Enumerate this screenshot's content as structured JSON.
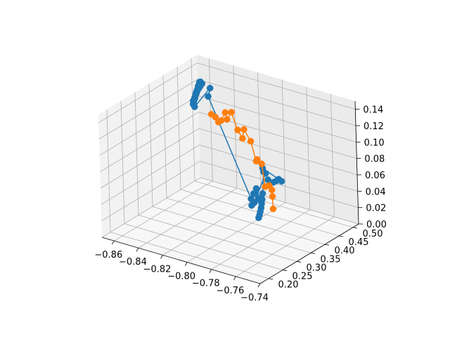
{
  "chart_data": {
    "type": "scatter",
    "projection": "3d",
    "title": "",
    "xlabel": "",
    "ylabel": "",
    "zlabel": "",
    "grid": true,
    "xlim": [
      -0.87,
      -0.74
    ],
    "ylim": [
      0.17,
      0.52
    ],
    "zlim": [
      0.0,
      0.15
    ],
    "x_ticks": [
      "−0.86",
      "−0.84",
      "−0.82",
      "−0.80",
      "−0.78",
      "−0.76",
      "−0.74"
    ],
    "y_ticks": [
      "0.20",
      "0.25",
      "0.30",
      "0.35",
      "0.40",
      "0.45",
      "0.50"
    ],
    "z_ticks": [
      "0.00",
      "0.02",
      "0.04",
      "0.06",
      "0.08",
      "0.10",
      "0.12",
      "0.14"
    ],
    "colors": {
      "series_1": "#1f77b4",
      "series_2": "#ff7f0e"
    },
    "series": [
      {
        "color": "#1f77b4",
        "style": "line-markers",
        "points": [
          [
            -0.862,
            0.47,
            0.105
          ],
          [
            -0.862,
            0.472,
            0.108
          ],
          [
            -0.861,
            0.471,
            0.111
          ],
          [
            -0.861,
            0.473,
            0.114
          ],
          [
            -0.86,
            0.472,
            0.117
          ],
          [
            -0.86,
            0.474,
            0.12
          ],
          [
            -0.859,
            0.473,
            0.123
          ],
          [
            -0.859,
            0.475,
            0.126
          ],
          [
            -0.858,
            0.474,
            0.129
          ],
          [
            -0.858,
            0.476,
            0.131
          ],
          [
            -0.857,
            0.475,
            0.132
          ],
          [
            -0.856,
            0.476,
            0.13
          ],
          [
            -0.857,
            0.474,
            0.127
          ],
          [
            -0.858,
            0.473,
            0.124
          ],
          [
            -0.859,
            0.472,
            0.121
          ],
          [
            -0.86,
            0.471,
            0.118
          ],
          [
            -0.861,
            0.47,
            0.112
          ],
          [
            -0.862,
            0.469,
            0.108
          ],
          [
            -0.862,
            0.468,
            0.104
          ],
          [
            -0.861,
            0.469,
            0.101
          ],
          [
            -0.849,
            0.474,
            0.128
          ],
          [
            -0.85,
            0.471,
            0.118
          ],
          [
            -0.773,
            0.286,
            0.065
          ],
          [
            -0.771,
            0.287,
            0.072
          ],
          [
            -0.769,
            0.288,
            0.079
          ],
          [
            -0.77,
            0.289,
            0.072
          ],
          [
            -0.768,
            0.29,
            0.067
          ],
          [
            -0.766,
            0.291,
            0.065
          ],
          [
            -0.772,
            0.283,
            0.058
          ],
          [
            -0.77,
            0.284,
            0.062
          ],
          [
            -0.757,
            0.272,
            0.106
          ],
          [
            -0.756,
            0.275,
            0.098
          ],
          [
            -0.755,
            0.278,
            0.094
          ],
          [
            -0.753,
            0.28,
            0.095
          ],
          [
            -0.751,
            0.282,
            0.097
          ],
          [
            -0.749,
            0.283,
            0.1
          ],
          [
            -0.747,
            0.285,
            0.098
          ],
          [
            -0.759,
            0.27,
            0.112
          ],
          [
            -0.758,
            0.269,
            0.108
          ],
          [
            -0.76,
            0.272,
            0.08
          ],
          [
            -0.761,
            0.274,
            0.072
          ],
          [
            -0.762,
            0.276,
            0.066
          ],
          [
            -0.763,
            0.278,
            0.06
          ],
          [
            -0.764,
            0.279,
            0.055
          ],
          [
            -0.765,
            0.28,
            0.05
          ],
          [
            -0.766,
            0.281,
            0.046
          ]
        ]
      },
      {
        "color": "#ff7f0e",
        "style": "line-markers",
        "points": [
          [
            -0.848,
            0.472,
            0.097
          ],
          [
            -0.843,
            0.465,
            0.097
          ],
          [
            -0.84,
            0.462,
            0.093
          ],
          [
            -0.836,
            0.455,
            0.098
          ],
          [
            -0.832,
            0.453,
            0.11
          ],
          [
            -0.83,
            0.45,
            0.103
          ],
          [
            -0.825,
            0.445,
            0.115
          ],
          [
            -0.819,
            0.44,
            0.097
          ],
          [
            -0.814,
            0.435,
            0.09
          ],
          [
            -0.81,
            0.424,
            0.105
          ],
          [
            -0.803,
            0.417,
            0.095
          ],
          [
            -0.797,
            0.409,
            0.075
          ],
          [
            -0.795,
            0.404,
            0.079
          ],
          [
            -0.79,
            0.398,
            0.077
          ],
          [
            -0.784,
            0.383,
            0.055
          ],
          [
            -0.779,
            0.376,
            0.06
          ],
          [
            -0.775,
            0.368,
            0.058
          ],
          [
            -0.774,
            0.365,
            0.051
          ],
          [
            -0.773,
            0.362,
            0.037
          ]
        ]
      }
    ]
  }
}
